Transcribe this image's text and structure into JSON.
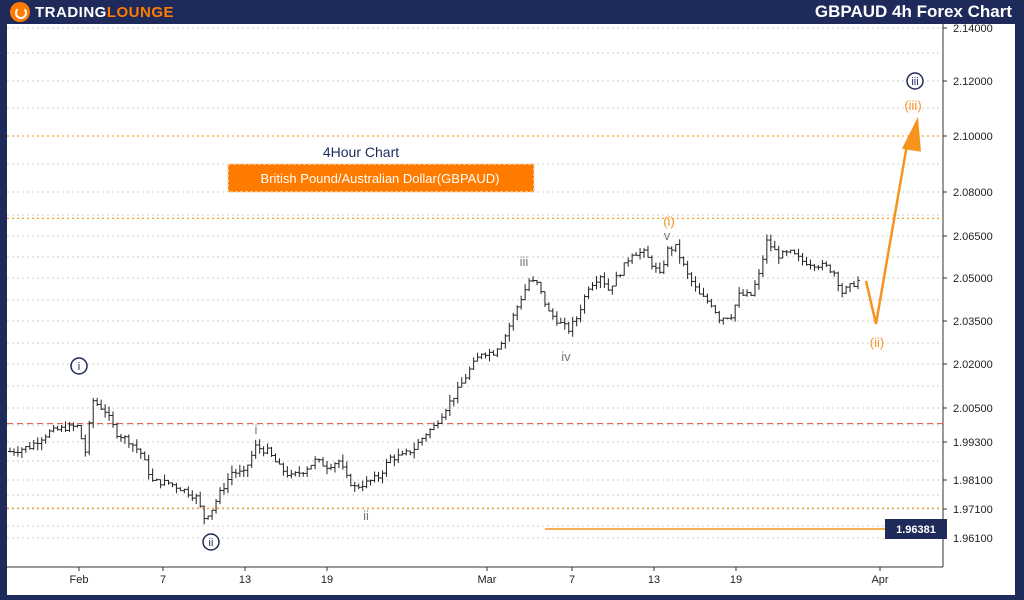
{
  "brand": {
    "name_part1": "TRADING",
    "name_part2": "LOUNGE"
  },
  "header": {
    "title": "GBPAUD 4h Forex Chart"
  },
  "colors": {
    "navy": "#1e2a5a",
    "orange": "#f7931e",
    "candle": "#222222",
    "red_dash": "#e8644a",
    "orange_dash": "#f7a21e",
    "grid": "#bfbfbf"
  },
  "annotations": {
    "timeframe": "4Hour Chart",
    "instrument": "British Pound/Australian Dollar(GBPAUD)"
  },
  "chart_data": {
    "type": "candlestick",
    "title": "GBPAUD 4h Forex Chart",
    "y_ticks": [
      "2.14000",
      "2.12000",
      "2.10000",
      "2.08000",
      "2.06500",
      "2.05000",
      "2.03500",
      "2.02000",
      "2.00500",
      "1.99300",
      "1.98100",
      "1.97100",
      "1.96100"
    ],
    "x_ticks": [
      "Feb",
      "7",
      "13",
      "19",
      "Mar",
      "7",
      "13",
      "19",
      "Apr"
    ],
    "current_price": "1.96381",
    "levels": [
      {
        "price": 2.1,
        "style": "orange-dotted"
      },
      {
        "price": 2.071,
        "style": "orange-dotted"
      },
      {
        "price": 1.9995,
        "style": "red-dashed"
      },
      {
        "price": 1.9713,
        "style": "orange-dotted"
      }
    ],
    "wave_labels": [
      {
        "text": "i",
        "style": "navy-circle"
      },
      {
        "text": "ii",
        "style": "navy-circle"
      },
      {
        "text": "i",
        "style": "gray"
      },
      {
        "text": "ii",
        "style": "gray"
      },
      {
        "text": "iii",
        "style": "gray"
      },
      {
        "text": "iv",
        "style": "gray"
      },
      {
        "text": "v",
        "style": "gray"
      },
      {
        "text": "(i)",
        "style": "orange"
      },
      {
        "text": "(ii)",
        "style": "orange"
      },
      {
        "text": "(iii)",
        "style": "orange"
      },
      {
        "text": "iii",
        "style": "navy-circle"
      }
    ],
    "path_anchors": [
      [
        0,
        1.99
      ],
      [
        5,
        1.9915
      ],
      [
        10,
        1.9965
      ],
      [
        14,
        1.998
      ],
      [
        17,
        1.9985
      ],
      [
        19,
        1.99
      ],
      [
        21,
        2.0075
      ],
      [
        24,
        2.004
      ],
      [
        27,
        1.996
      ],
      [
        30,
        1.9935
      ],
      [
        33,
        1.9895
      ],
      [
        36,
        1.9805
      ],
      [
        40,
        1.98
      ],
      [
        44,
        1.9775
      ],
      [
        47,
        1.975
      ],
      [
        49,
        1.968
      ],
      [
        51,
        1.971
      ],
      [
        53,
        1.9765
      ],
      [
        56,
        1.9835
      ],
      [
        59,
        1.983
      ],
      [
        62,
        1.9915
      ],
      [
        65,
        1.99
      ],
      [
        68,
        1.985
      ],
      [
        71,
        1.982
      ],
      [
        74,
        1.984
      ],
      [
        77,
        1.987
      ],
      [
        80,
        1.9855
      ],
      [
        83,
        1.987
      ],
      [
        85,
        1.9815
      ],
      [
        87,
        1.9785
      ],
      [
        90,
        1.98
      ],
      [
        93,
        1.982
      ],
      [
        96,
        1.988
      ],
      [
        99,
        1.9885
      ],
      [
        102,
        1.991
      ],
      [
        105,
        1.996
      ],
      [
        107,
        1.9985
      ],
      [
        110,
        2.005
      ],
      [
        113,
        2.011
      ],
      [
        116,
        2.018
      ],
      [
        119,
        2.024
      ],
      [
        122,
        2.024
      ],
      [
        125,
        2.03
      ],
      [
        128,
        2.04
      ],
      [
        131,
        2.049
      ],
      [
        133,
        2.048
      ],
      [
        136,
        2.038
      ],
      [
        139,
        2.034
      ],
      [
        141,
        2.032
      ],
      [
        143,
        2.036
      ],
      [
        146,
        2.047
      ],
      [
        149,
        2.051
      ],
      [
        151,
        2.046
      ],
      [
        154,
        2.052
      ],
      [
        157,
        2.059
      ],
      [
        160,
        2.059
      ],
      [
        162,
        2.055
      ],
      [
        164,
        2.051
      ],
      [
        166,
        2.06
      ],
      [
        168,
        2.061
      ],
      [
        171,
        2.051
      ],
      [
        174,
        2.044
      ],
      [
        177,
        2.041
      ],
      [
        179,
        2.036
      ],
      [
        182,
        2.037
      ],
      [
        184,
        2.044
      ],
      [
        187,
        2.044
      ],
      [
        189,
        2.051
      ],
      [
        191,
        2.063
      ],
      [
        194,
        2.058
      ],
      [
        197,
        2.059
      ],
      [
        200,
        2.056
      ],
      [
        203,
        2.055
      ],
      [
        206,
        2.054
      ],
      [
        208,
        2.052
      ],
      [
        210,
        2.045
      ],
      [
        212,
        2.047
      ],
      [
        214,
        2.049
      ]
    ],
    "projection": [
      {
        "from": "last",
        "to_price": 2.034,
        "label": "(ii)"
      },
      {
        "to_price": 2.107,
        "label": "(iii)"
      }
    ]
  }
}
